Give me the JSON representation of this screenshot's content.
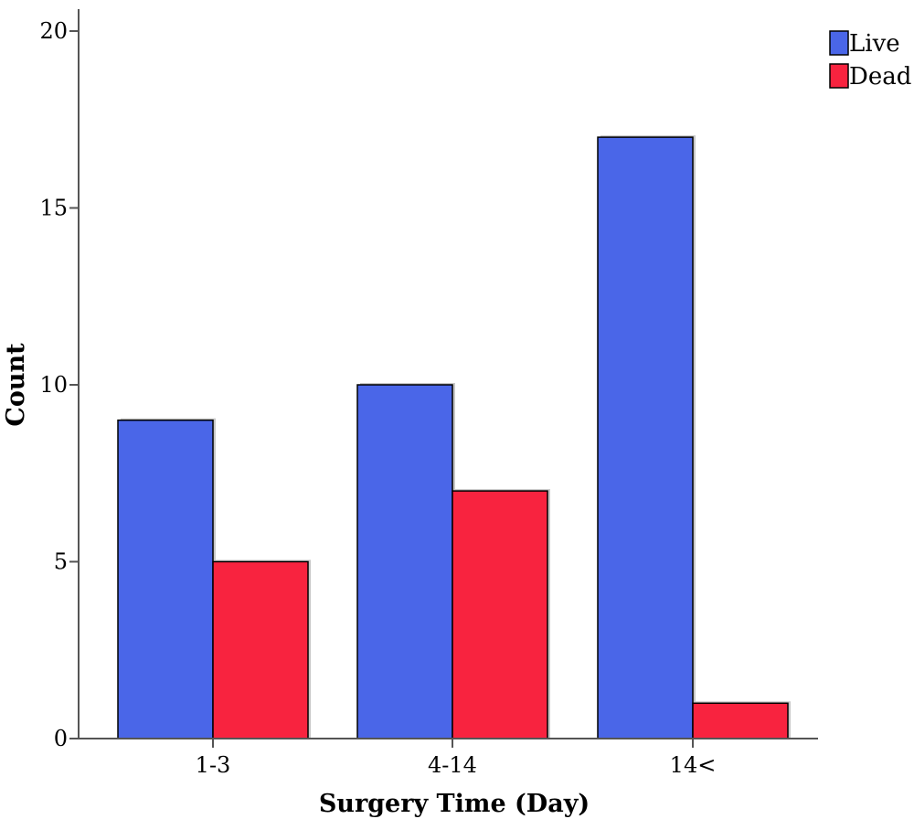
{
  "chart_data": {
    "type": "bar",
    "categories": [
      "1-3",
      "4-14",
      "14<"
    ],
    "series": [
      {
        "name": "Live",
        "values": [
          9,
          10,
          17
        ],
        "color": "#4a66e8"
      },
      {
        "name": "Dead",
        "values": [
          5,
          7,
          1
        ],
        "color": "#f8233f"
      }
    ],
    "xlabel": "Surgery Time (Day)",
    "ylabel": "Count",
    "ylim": [
      0,
      20
    ],
    "yticks": [
      0,
      5,
      10,
      15,
      20
    ],
    "grid": false,
    "legend_position": "top-right"
  }
}
